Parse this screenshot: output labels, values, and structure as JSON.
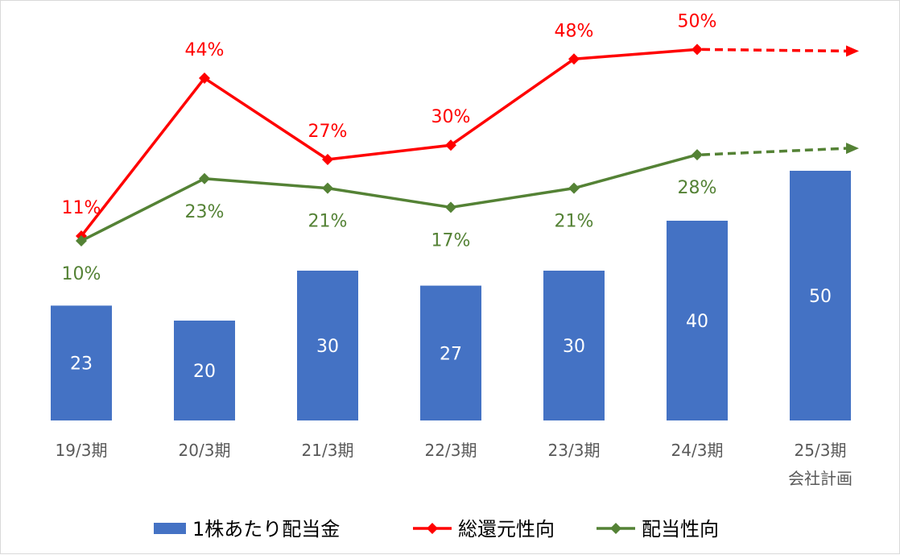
{
  "chart_data": {
    "type": "bar",
    "categories": [
      "19/3期",
      "20/3期",
      "21/3期",
      "22/3期",
      "23/3期",
      "24/3期",
      "25/3期\n会社計画"
    ],
    "series": [
      {
        "name": "1株あたり配当金",
        "type": "bar",
        "values": [
          23,
          20,
          30,
          27,
          30,
          40,
          50
        ],
        "labels": [
          "23",
          "20",
          "30",
          "27",
          "30",
          "40",
          "50"
        ],
        "color": "#4472c4"
      },
      {
        "name": "総還元性向",
        "type": "line",
        "values": [
          11,
          44,
          27,
          30,
          48,
          50,
          null
        ],
        "labels": [
          "11%",
          "44%",
          "27%",
          "30%",
          "48%",
          "50%",
          null
        ],
        "color": "#ff0000",
        "forecast": "dashed arrow to 25/3期"
      },
      {
        "name": "配当性向",
        "type": "line",
        "values": [
          10,
          23,
          21,
          17,
          21,
          28,
          null
        ],
        "labels": [
          "10%",
          "23%",
          "21%",
          "17%",
          "21%",
          "28%",
          null
        ],
        "color": "#548235",
        "forecast": "dashed arrow to 25/3期"
      }
    ],
    "legend_position": "bottom",
    "grid": false
  }
}
